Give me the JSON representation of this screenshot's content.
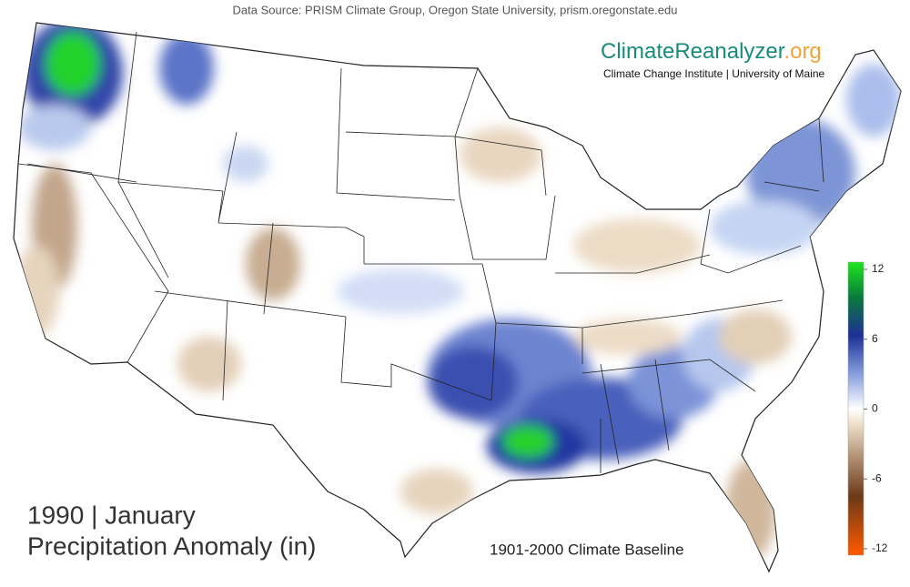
{
  "header": {
    "source": "Data Source: PRISM Climate Group, Oregon State University, prism.oregonstate.edu"
  },
  "logo": {
    "name": "ClimateReanalyzer",
    "suffix": ".org",
    "subtitle": "Climate Change Institute | University of Maine"
  },
  "title": {
    "line1": "1990 | January",
    "line2": "Precipitation Anomaly (in)"
  },
  "baseline": "1901-2000 Climate Baseline",
  "colorbar": {
    "lim": [
      -12,
      12
    ],
    "ticks": [
      12,
      6,
      0,
      -6,
      -12
    ]
  }
}
